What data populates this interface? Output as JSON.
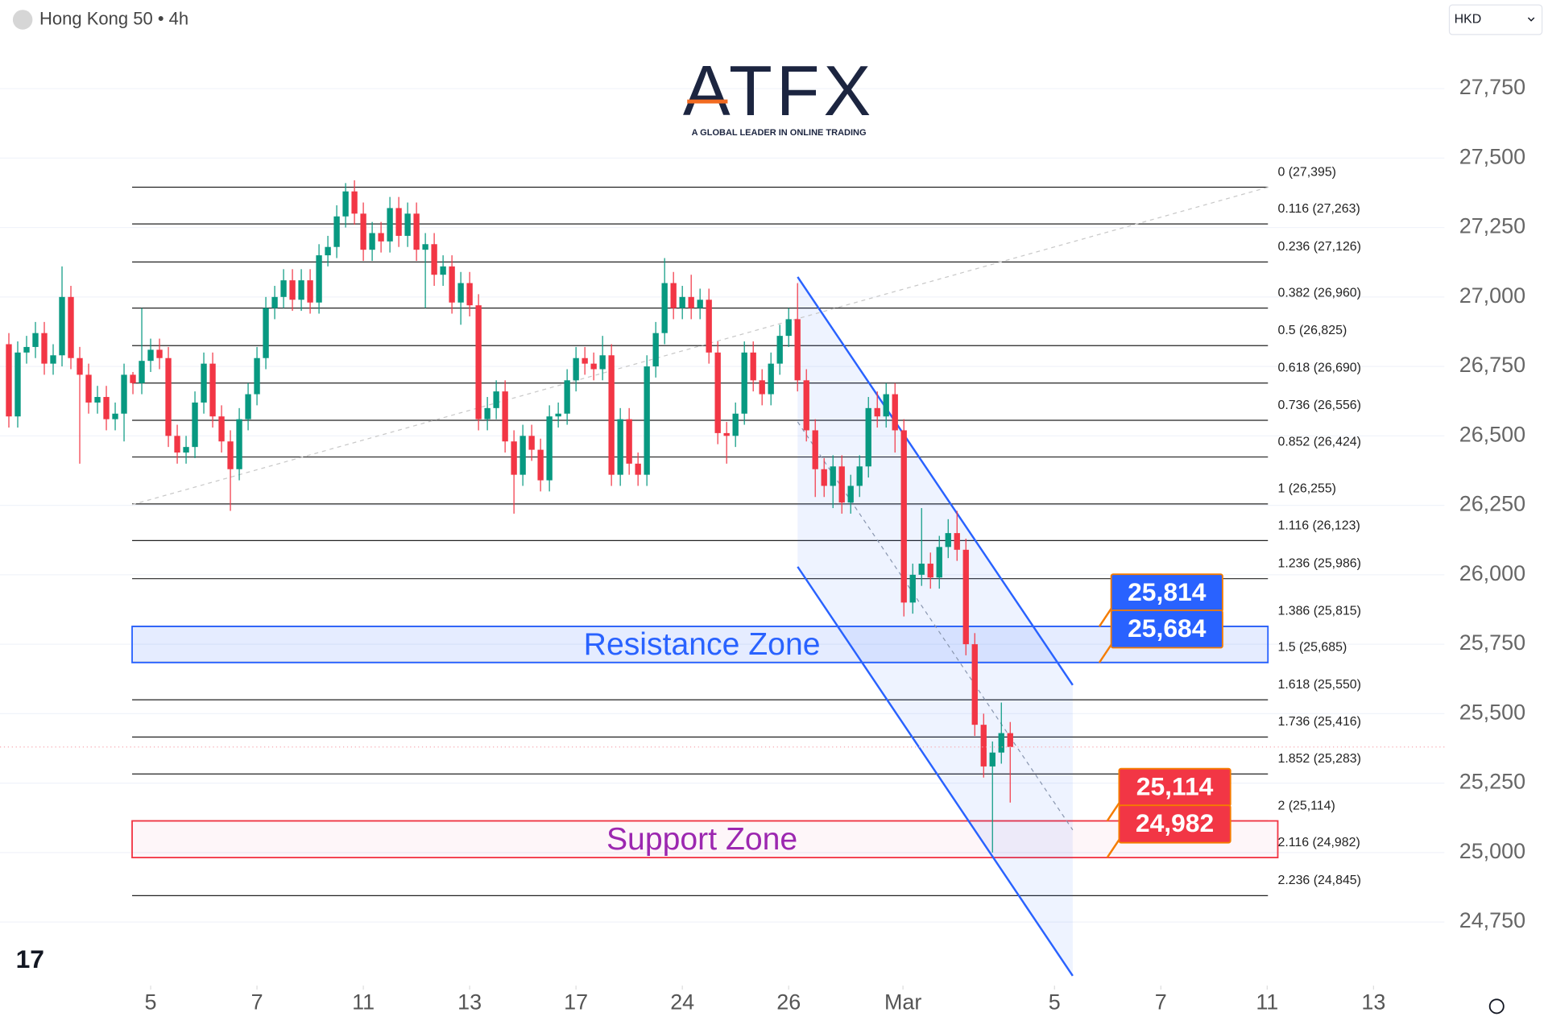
{
  "header": {
    "symbol": "Hong Kong 50 • 4h",
    "currency": "HKD"
  },
  "logo": {
    "name": "ATFX",
    "tagline": "A GLOBAL LEADER IN ONLINE TRADING"
  },
  "chart_data": {
    "type": "candlestick",
    "categories": [
      null,
      null,
      null,
      null,
      null,
      null,
      null,
      null,
      null,
      null,
      null,
      null,
      null,
      null,
      null,
      null,
      null,
      null,
      null,
      null,
      null,
      null,
      null,
      null,
      null,
      null,
      null,
      null,
      null,
      null,
      null,
      null,
      null,
      null,
      null,
      null,
      null,
      null,
      null,
      null,
      null,
      null,
      null,
      null,
      null,
      null,
      null,
      null,
      null,
      null,
      null,
      null,
      null,
      null,
      null,
      null,
      null,
      null,
      null,
      null,
      null,
      null,
      null,
      null,
      null,
      null,
      null,
      null,
      null,
      null,
      null,
      null,
      null,
      null,
      null,
      null,
      null,
      null,
      null,
      null,
      null,
      null,
      null,
      null,
      null,
      null,
      null,
      null,
      null,
      null,
      null,
      null,
      null,
      null,
      null,
      null,
      null,
      null,
      null,
      null,
      null,
      null,
      null,
      null,
      null,
      null,
      null,
      null,
      null,
      null,
      null,
      null,
      null,
      null
    ],
    "open": [
      26830,
      26570,
      26800,
      26820,
      26870,
      26760,
      26790,
      27000,
      26780,
      26720,
      26620,
      26640,
      26560,
      26580,
      26720,
      26690,
      26770,
      26810,
      26780,
      26500,
      26440,
      26460,
      26620,
      26760,
      26570,
      26480,
      26380,
      26560,
      26650,
      26780,
      26960,
      27000,
      27060,
      26990,
      27060,
      26980,
      27150,
      27180,
      27290,
      27380,
      27300,
      27170,
      27230,
      27200,
      27320,
      27220,
      27300,
      27170,
      27190,
      27080,
      27110,
      26980,
      27050,
      26970,
      26560,
      26600,
      26660,
      26480,
      26360,
      26500,
      26450,
      26340,
      26570,
      26580,
      26700,
      26780,
      26760,
      26740,
      26790,
      26360,
      26560,
      26400,
      26360,
      26750,
      26870,
      27050,
      26960,
      27000,
      26960,
      26990,
      26800,
      26510,
      26500,
      26580,
      26800,
      26700,
      26650,
      26760,
      26860,
      26920,
      26700,
      26520,
      26380,
      26320,
      26390,
      26260,
      26320,
      26390,
      26600,
      26570,
      26650,
      26520,
      25900,
      26000,
      26040,
      25990,
      26100,
      26150,
      26090,
      25750,
      25460,
      25310,
      25360,
      25430
    ],
    "high": [
      26870,
      26840,
      26860,
      26910,
      26910,
      26830,
      27110,
      27040,
      26820,
      26760,
      26680,
      26680,
      26620,
      26760,
      26730,
      26960,
      26850,
      26850,
      26820,
      26540,
      26500,
      26660,
      26800,
      26800,
      26610,
      26520,
      26600,
      26690,
      26820,
      27000,
      27040,
      27100,
      27100,
      27100,
      27100,
      27190,
      27220,
      27330,
      27410,
      27420,
      27340,
      27270,
      27270,
      27360,
      27360,
      27340,
      27340,
      27230,
      27230,
      27150,
      27150,
      27090,
      27090,
      27010,
      26640,
      26700,
      26700,
      26520,
      26540,
      26540,
      26490,
      26610,
      26620,
      26740,
      26820,
      26820,
      26800,
      26860,
      26830,
      26600,
      26600,
      26440,
      26790,
      26910,
      27140,
      27090,
      27040,
      27080,
      27030,
      27030,
      26840,
      26550,
      26620,
      26840,
      26840,
      26740,
      26800,
      26900,
      26960,
      27050,
      26740,
      26560,
      26420,
      26430,
      26430,
      26360,
      26430,
      26640,
      26660,
      26690,
      26690,
      26560,
      26040,
      26240,
      26080,
      26140,
      26200,
      26230,
      26130,
      25790,
      25500,
      25400,
      25540,
      25470
    ],
    "low": [
      26530,
      26530,
      26760,
      26780,
      26720,
      26720,
      26750,
      26740,
      26400,
      26580,
      26580,
      26520,
      26520,
      26480,
      26650,
      26650,
      26730,
      26740,
      26460,
      26400,
      26400,
      26420,
      26580,
      26530,
      26440,
      26230,
      26340,
      26520,
      26610,
      26740,
      26920,
      26960,
      26950,
      26950,
      26940,
      26940,
      27110,
      27140,
      27250,
      27260,
      27130,
      27130,
      27160,
      27160,
      27180,
      27180,
      27130,
      26960,
      27040,
      27040,
      26940,
      26900,
      26930,
      26520,
      26520,
      26560,
      26440,
      26220,
      26320,
      26410,
      26300,
      26300,
      26530,
      26540,
      26660,
      26720,
      26700,
      26700,
      26320,
      26320,
      26360,
      26320,
      26320,
      26710,
      26830,
      26920,
      26920,
      26920,
      26920,
      26760,
      26470,
      26400,
      26460,
      26540,
      26660,
      26610,
      26610,
      26720,
      26820,
      26660,
      26480,
      26280,
      26280,
      26240,
      26220,
      26220,
      26280,
      26350,
      26530,
      26530,
      26440,
      25850,
      25860,
      25960,
      25950,
      25950,
      26060,
      26050,
      25710,
      25420,
      25270,
      25000,
      25320,
      25180
    ],
    "close": [
      26570,
      26800,
      26820,
      26870,
      26760,
      26790,
      27000,
      26780,
      26720,
      26620,
      26640,
      26560,
      26580,
      26720,
      26690,
      26770,
      26810,
      26780,
      26500,
      26440,
      26460,
      26620,
      26760,
      26570,
      26480,
      26380,
      26560,
      26650,
      26780,
      26960,
      27000,
      27060,
      26990,
      27060,
      26980,
      27150,
      27180,
      27290,
      27380,
      27300,
      27170,
      27230,
      27200,
      27320,
      27220,
      27300,
      27170,
      27190,
      27080,
      27110,
      26980,
      27050,
      26970,
      26560,
      26600,
      26660,
      26480,
      26360,
      26500,
      26450,
      26340,
      26570,
      26580,
      26700,
      26780,
      26760,
      26740,
      26790,
      26360,
      26560,
      26400,
      26360,
      26750,
      26870,
      27050,
      26960,
      27000,
      26960,
      26990,
      26800,
      26510,
      26500,
      26580,
      26800,
      26700,
      26650,
      26760,
      26860,
      26920,
      26700,
      26520,
      26380,
      26320,
      26390,
      26260,
      26320,
      26390,
      26600,
      26570,
      26650,
      26520,
      25900,
      26000,
      26040,
      25990,
      26100,
      26150,
      26090,
      25750,
      25460,
      25310,
      25360,
      25430,
      25380
    ],
    "up_color": "#089981",
    "down_color": "#f23645",
    "xlim": [
      -1,
      162
    ],
    "xticks": [
      {
        "value": 16,
        "label": "5"
      },
      {
        "value": 28,
        "label": "7"
      },
      {
        "value": 40,
        "label": "11"
      },
      {
        "value": 52,
        "label": "13"
      },
      {
        "value": 64,
        "label": "17"
      },
      {
        "value": 76,
        "label": "24"
      },
      {
        "value": 88,
        "label": "26"
      },
      {
        "value": 100.9,
        "label": "Mar"
      },
      {
        "value": 118,
        "label": "5"
      },
      {
        "value": 130,
        "label": "7"
      },
      {
        "value": 142,
        "label": "11"
      },
      {
        "value": 154,
        "label": "13"
      }
    ],
    "ylim": [
      24521,
      28069
    ],
    "yticks": [
      {
        "value": 24750,
        "label": "24,750"
      },
      {
        "value": 25000,
        "label": "25,000"
      },
      {
        "value": 25250,
        "label": "25,250"
      },
      {
        "value": 25500,
        "label": "25,500"
      },
      {
        "value": 25750,
        "label": "25,750"
      },
      {
        "value": 26000,
        "label": "26,000"
      },
      {
        "value": 26250,
        "label": "26,250"
      },
      {
        "value": 26500,
        "label": "26,500"
      },
      {
        "value": 26750,
        "label": "26,750"
      },
      {
        "value": 27000,
        "label": "27,000"
      },
      {
        "value": 27250,
        "label": "27,250"
      },
      {
        "value": 27500,
        "label": "27,500"
      },
      {
        "value": 27750,
        "label": "27,750"
      }
    ],
    "grid": true,
    "fib_levels": [
      {
        "value": 27395,
        "label": "0 (27,395)"
      },
      {
        "value": 27263,
        "label": "0.116 (27,263)"
      },
      {
        "value": 27126,
        "label": "0.236 (27,126)"
      },
      {
        "value": 26960,
        "label": "0.382 (26,960)"
      },
      {
        "value": 26825,
        "label": "0.5 (26,825)"
      },
      {
        "value": 26690,
        "label": "0.618 (26,690)"
      },
      {
        "value": 26556,
        "label": "0.736 (26,556)"
      },
      {
        "value": 26424,
        "label": "0.852 (26,424)"
      },
      {
        "value": 26255,
        "label": "1 (26,255)"
      },
      {
        "value": 26123,
        "label": "1.116 (26,123)"
      },
      {
        "value": 25986,
        "label": "1.236 (25,986)"
      },
      {
        "value": 25815,
        "label": "1.386 (25,815)"
      },
      {
        "value": 25685,
        "label": "1.5 (25,685)"
      },
      {
        "value": 25550,
        "label": "1.618 (25,550)"
      },
      {
        "value": 25416,
        "label": "1.736 (25,416)"
      },
      {
        "value": 25283,
        "label": "1.852 (25,283)"
      },
      {
        "value": 25114,
        "label": "2 (25,114)"
      },
      {
        "value": 24982,
        "label": "2.116 (24,982)"
      },
      {
        "value": 24845,
        "label": "2.236 (24,845)"
      }
    ],
    "zones": [
      {
        "name": "Resistance Zone",
        "values": [
          25814,
          25684
        ],
        "value_labels": [
          "25,814",
          "25,684"
        ],
        "color": "#2962ff",
        "text_color": "#2962ff",
        "fill": "rgba(41,98,255,0.12)"
      },
      {
        "name": "Support Zone",
        "values": [
          25114,
          24982
        ],
        "value_labels": [
          "25,114",
          "24,982"
        ],
        "color": "#f23645",
        "text_color": "#9c27b0",
        "fill": "rgba(233,30,99,0.04)"
      }
    ]
  }
}
